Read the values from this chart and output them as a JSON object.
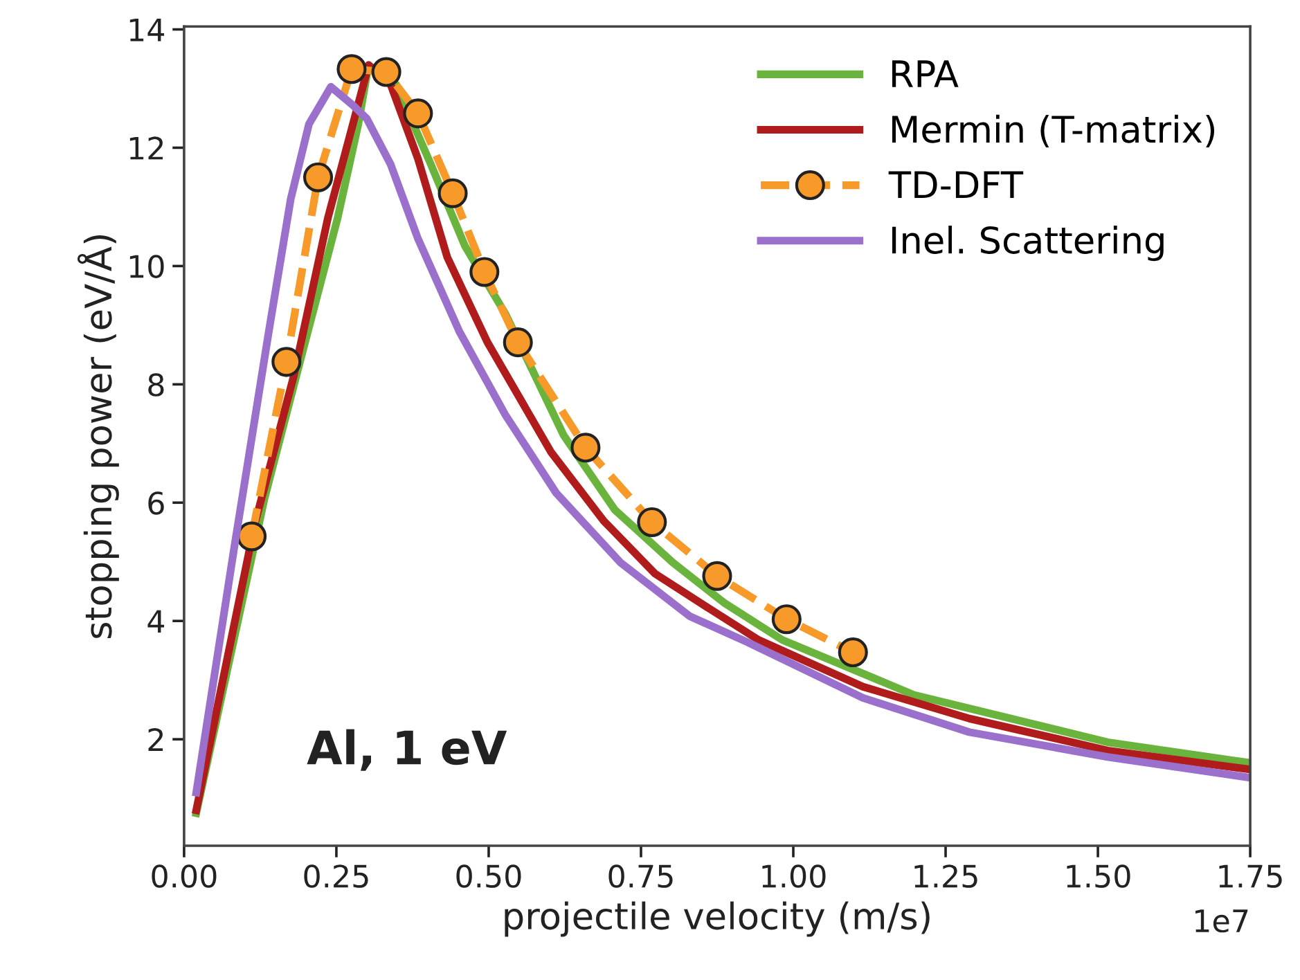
{
  "chart_data": {
    "type": "line",
    "xlabel": "projectile velocity (m/s)",
    "ylabel": "stopping power (eV/Å)",
    "xlim": [
      0,
      1.75
    ],
    "ylim": [
      0.2,
      14.05
    ],
    "xticks": [
      {
        "value": 0,
        "label": "0.00"
      },
      {
        "value": 0.25,
        "label": "0.25"
      },
      {
        "value": 0.5,
        "label": "0.50"
      },
      {
        "value": 0.75,
        "label": "0.75"
      },
      {
        "value": 1,
        "label": "1.00"
      },
      {
        "value": 1.25,
        "label": "1.25"
      },
      {
        "value": 1.5,
        "label": "1.50"
      },
      {
        "value": 1.75,
        "label": "1.75"
      }
    ],
    "yticks": [
      2,
      4,
      6,
      8,
      10,
      12,
      14
    ],
    "grid": false,
    "legend": "top right",
    "annotations": [
      "Al, 1 eV",
      "1e7"
    ],
    "series": [
      {
        "name": "RPA",
        "color": "#6ab43e",
        "marker": "none",
        "line_style": "solid",
        "x": [
          0.02,
          0.132,
          0.195,
          0.252,
          0.286,
          0.302,
          0.348,
          0.405,
          0.461,
          0.527,
          0.623,
          0.707,
          0.802,
          0.886,
          0.982,
          1.198,
          1.516,
          1.75
        ],
        "values": [
          0.75,
          6.07,
          8.57,
          10.81,
          12.4,
          13.35,
          13.07,
          11.72,
          10.34,
          9.2,
          7.14,
          5.88,
          4.99,
          4.31,
          3.68,
          2.75,
          1.95,
          1.6
        ]
      },
      {
        "name": "Mermin (T-matrix)",
        "color": "#b01c1c",
        "marker": "none",
        "line_style": "solid",
        "x": [
          0.02,
          0.116,
          0.18,
          0.236,
          0.303,
          0.339,
          0.384,
          0.432,
          0.498,
          0.602,
          0.689,
          0.773,
          0.868,
          0.943,
          1.114,
          1.289,
          1.516,
          1.75
        ],
        "values": [
          0.8,
          5.64,
          8.14,
          10.81,
          13.4,
          13.07,
          11.81,
          10.15,
          8.71,
          6.86,
          5.69,
          4.8,
          4.17,
          3.68,
          2.89,
          2.35,
          1.81,
          1.49
        ]
      },
      {
        "name": "TD-DFT",
        "color": "#f79a2a",
        "marker": "circle",
        "line_style": "dashed",
        "x": [
          0.111,
          0.168,
          0.22,
          0.275,
          0.332,
          0.384,
          0.441,
          0.493,
          0.548,
          0.659,
          0.768,
          0.875,
          0.989,
          1.098
        ],
        "values": [
          5.43,
          8.38,
          11.5,
          13.33,
          13.28,
          12.58,
          11.23,
          9.9,
          8.71,
          6.93,
          5.67,
          4.76,
          4.03,
          3.47
        ]
      },
      {
        "name": "Inel. Scattering",
        "color": "#9b6fcc",
        "marker": "none",
        "line_style": "solid",
        "x": [
          0.02,
          0.082,
          0.139,
          0.175,
          0.205,
          0.241,
          0.277,
          0.3,
          0.339,
          0.384,
          0.452,
          0.527,
          0.611,
          0.716,
          0.83,
          0.925,
          1.114,
          1.289,
          1.516,
          1.75
        ],
        "values": [
          1.1,
          5.22,
          8.89,
          11.13,
          12.4,
          13.03,
          12.72,
          12.49,
          11.72,
          10.46,
          8.89,
          7.49,
          6.16,
          4.99,
          4.08,
          3.64,
          2.7,
          2.12,
          1.7,
          1.35
        ]
      }
    ]
  }
}
